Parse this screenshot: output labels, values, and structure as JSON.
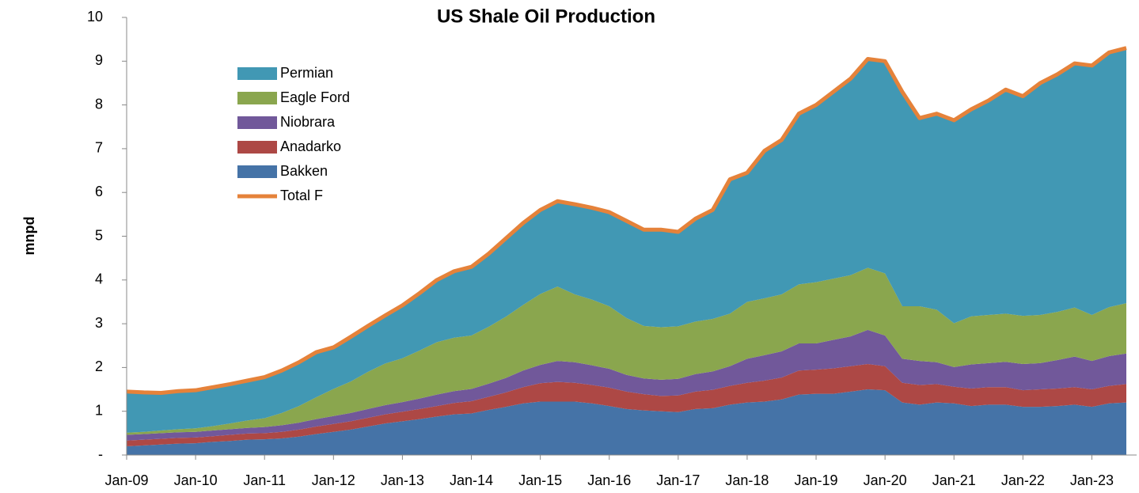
{
  "chart_data": {
    "type": "area",
    "stacked": true,
    "title": "US Shale Oil Production",
    "y_label": "mnpd",
    "categories": [
      "Jan-09",
      null,
      null,
      null,
      "Jan-10",
      null,
      null,
      null,
      "Jan-11",
      null,
      null,
      null,
      "Jan-12",
      null,
      null,
      null,
      "Jan-13",
      null,
      null,
      null,
      "Jan-14",
      null,
      null,
      null,
      "Jan-15",
      null,
      null,
      null,
      "Jan-16",
      null,
      null,
      null,
      "Jan-17",
      null,
      null,
      null,
      "Jan-18",
      null,
      null,
      null,
      "Jan-19",
      null,
      null,
      null,
      "Jan-20",
      null,
      null,
      null,
      "Jan-21",
      null,
      null,
      null,
      "Jan-22",
      null,
      null,
      null,
      "Jan-23",
      null,
      null
    ],
    "ylim": [
      0,
      10
    ],
    "yticks": [
      {
        "value": 0,
        "label": "-"
      },
      1,
      2,
      3,
      4,
      5,
      6,
      7,
      8,
      9,
      10
    ],
    "legend": "top-left",
    "series": [
      {
        "name": "Bakken",
        "color": "#4573a7",
        "values": [
          0.2,
          0.22,
          0.24,
          0.26,
          0.27,
          0.3,
          0.32,
          0.35,
          0.36,
          0.38,
          0.42,
          0.48,
          0.53,
          0.58,
          0.65,
          0.72,
          0.77,
          0.82,
          0.88,
          0.93,
          0.95,
          1.03,
          1.1,
          1.18,
          1.22,
          1.22,
          1.22,
          1.18,
          1.12,
          1.05,
          1.02,
          1.0,
          0.98,
          1.05,
          1.07,
          1.15,
          1.2,
          1.22,
          1.27,
          1.38,
          1.4,
          1.4,
          1.45,
          1.5,
          1.48,
          1.2,
          1.15,
          1.2,
          1.18,
          1.12,
          1.15,
          1.15,
          1.1,
          1.1,
          1.12,
          1.15,
          1.1,
          1.18,
          1.2
        ]
      },
      {
        "name": "Anadarko",
        "color": "#ad4845",
        "values": [
          0.13,
          0.13,
          0.13,
          0.13,
          0.13,
          0.13,
          0.14,
          0.14,
          0.14,
          0.15,
          0.16,
          0.17,
          0.18,
          0.19,
          0.2,
          0.21,
          0.22,
          0.23,
          0.24,
          0.26,
          0.28,
          0.3,
          0.33,
          0.37,
          0.42,
          0.45,
          0.43,
          0.42,
          0.42,
          0.4,
          0.37,
          0.35,
          0.38,
          0.4,
          0.42,
          0.43,
          0.45,
          0.48,
          0.5,
          0.55,
          0.55,
          0.58,
          0.58,
          0.58,
          0.55,
          0.45,
          0.45,
          0.42,
          0.38,
          0.4,
          0.4,
          0.4,
          0.38,
          0.4,
          0.4,
          0.4,
          0.4,
          0.4,
          0.42
        ]
      },
      {
        "name": "Niobrara",
        "color": "#71589a",
        "values": [
          0.13,
          0.13,
          0.13,
          0.13,
          0.13,
          0.13,
          0.13,
          0.13,
          0.14,
          0.15,
          0.16,
          0.17,
          0.18,
          0.19,
          0.2,
          0.21,
          0.22,
          0.24,
          0.26,
          0.27,
          0.28,
          0.3,
          0.33,
          0.38,
          0.42,
          0.48,
          0.47,
          0.45,
          0.43,
          0.38,
          0.36,
          0.37,
          0.38,
          0.4,
          0.42,
          0.45,
          0.55,
          0.58,
          0.6,
          0.62,
          0.6,
          0.65,
          0.68,
          0.78,
          0.7,
          0.55,
          0.55,
          0.5,
          0.45,
          0.55,
          0.55,
          0.58,
          0.6,
          0.6,
          0.65,
          0.7,
          0.65,
          0.68,
          0.7
        ]
      },
      {
        "name": "Eagle Ford",
        "color": "#8aa64e",
        "values": [
          0.05,
          0.05,
          0.06,
          0.07,
          0.08,
          0.1,
          0.13,
          0.17,
          0.2,
          0.28,
          0.38,
          0.5,
          0.62,
          0.72,
          0.85,
          0.95,
          1.0,
          1.1,
          1.2,
          1.22,
          1.22,
          1.3,
          1.4,
          1.5,
          1.62,
          1.7,
          1.55,
          1.5,
          1.43,
          1.3,
          1.2,
          1.2,
          1.2,
          1.2,
          1.2,
          1.2,
          1.3,
          1.3,
          1.3,
          1.35,
          1.4,
          1.4,
          1.4,
          1.42,
          1.42,
          1.2,
          1.25,
          1.2,
          1.0,
          1.1,
          1.1,
          1.1,
          1.1,
          1.1,
          1.1,
          1.12,
          1.05,
          1.12,
          1.15
        ]
      },
      {
        "name": "Permian",
        "color": "#4198b4",
        "values": [
          0.94,
          0.9,
          0.86,
          0.87,
          0.87,
          0.89,
          0.9,
          0.91,
          0.94,
          0.97,
          1.0,
          1.03,
          0.95,
          1.02,
          1.05,
          1.1,
          1.21,
          1.31,
          1.42,
          1.52,
          1.57,
          1.67,
          1.79,
          1.87,
          1.92,
          1.95,
          2.06,
          2.1,
          2.15,
          2.22,
          2.2,
          2.23,
          2.16,
          2.35,
          2.49,
          3.07,
          2.95,
          3.37,
          3.53,
          3.9,
          4.05,
          4.27,
          4.49,
          4.77,
          4.85,
          4.9,
          4.3,
          4.48,
          4.64,
          4.73,
          4.9,
          5.12,
          5.02,
          5.3,
          5.43,
          5.58,
          5.7,
          5.82,
          5.83
        ]
      },
      {
        "name": "Total F",
        "color": "#e5823a",
        "type": "line",
        "values": [
          1.45,
          1.43,
          1.42,
          1.46,
          1.48,
          1.55,
          1.62,
          1.7,
          1.78,
          1.93,
          2.12,
          2.35,
          2.46,
          2.7,
          2.95,
          3.19,
          3.42,
          3.7,
          4.0,
          4.2,
          4.3,
          4.6,
          4.95,
          5.3,
          5.6,
          5.8,
          5.73,
          5.65,
          5.55,
          5.35,
          5.15,
          5.15,
          5.1,
          5.4,
          5.6,
          6.3,
          6.45,
          6.95,
          7.2,
          7.8,
          8.0,
          8.3,
          8.6,
          9.05,
          9.0,
          8.3,
          7.7,
          7.8,
          7.65,
          7.9,
          8.1,
          8.35,
          8.2,
          8.5,
          8.7,
          8.95,
          8.9,
          9.2,
          9.3
        ]
      }
    ]
  }
}
